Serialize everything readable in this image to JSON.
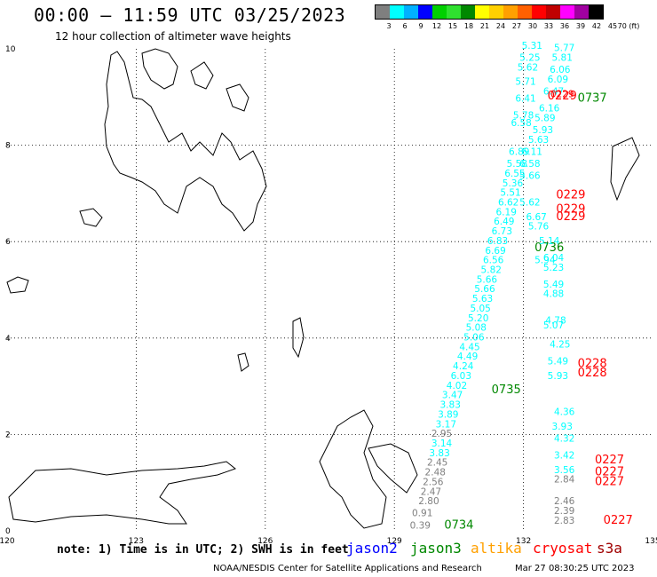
{
  "title": "00:00 – 11:59 UTC 03/25/2023",
  "subtitle": "12 hour collection of altimeter wave heights",
  "legend": {
    "colors": [
      "#7f7f7f",
      "#00ffff",
      "#00b0ff",
      "#0000ff",
      "#00d000",
      "#2fe02f",
      "#008800",
      "#ffff00",
      "#ffd000",
      "#ffa000",
      "#ff6000",
      "#ff0000",
      "#c00000",
      "#ff00ff",
      "#a000a0",
      "#000000"
    ],
    "labels": [
      "3",
      "6",
      "9",
      "12",
      "15",
      "18",
      "21",
      "24",
      "27",
      "30",
      "33",
      "36",
      "39",
      "42",
      "45",
      "70 (ft)"
    ]
  },
  "axes": {
    "lon_ticks": [
      "120",
      "123",
      "126",
      "129",
      "132",
      "135"
    ],
    "lat_ticks": [
      "0",
      "2",
      "4",
      "6",
      "8",
      "10"
    ],
    "lon_range": [
      120,
      135
    ],
    "lat_range": [
      0,
      10
    ],
    "grid": true
  },
  "footer": {
    "note": "note: 1) Time is in UTC; 2) SWH is in feet",
    "satellites": [
      {
        "name": "jason2",
        "color": "#0000ff"
      },
      {
        "name": "jason3",
        "color": "#008800"
      },
      {
        "name": "altika",
        "color": "#ffa000"
      },
      {
        "name": "cryosat",
        "color": "#ff0000"
      },
      {
        "name": "s3a",
        "color": "#a00000"
      }
    ],
    "credit": "NOAA/NESDIS Center for Satellite Applications and Research",
    "timestamp": "Mar 27 08:30:25 UTC 2023"
  },
  "chart_data": {
    "type": "scatter",
    "units": "ft",
    "tracks": [
      {
        "satellite": "jason3",
        "color": "#008800",
        "times": [
          {
            "label": "0734",
            "lon": 130.5,
            "lat": 0.05
          },
          {
            "label": "0735",
            "lon": 131.6,
            "lat": 2.85
          },
          {
            "label": "0736",
            "lon": 132.6,
            "lat": 5.8
          },
          {
            "label": "0737",
            "lon": 133.6,
            "lat": 8.9
          }
        ],
        "points": [
          {
            "v": "0.39",
            "lon": 129.6,
            "lat": 0.05,
            "c": "#7f7f7f"
          },
          {
            "v": "0.91",
            "lon": 129.65,
            "lat": 0.3,
            "c": "#7f7f7f"
          },
          {
            "v": "2.80",
            "lon": 129.8,
            "lat": 0.55,
            "c": "#7f7f7f"
          },
          {
            "v": "2.47",
            "lon": 129.85,
            "lat": 0.75,
            "c": "#7f7f7f"
          },
          {
            "v": "2.56",
            "lon": 129.9,
            "lat": 0.95,
            "c": "#7f7f7f"
          },
          {
            "v": "2.48",
            "lon": 129.95,
            "lat": 1.15,
            "c": "#7f7f7f"
          },
          {
            "v": "2.45",
            "lon": 130.0,
            "lat": 1.35,
            "c": "#7f7f7f"
          },
          {
            "v": "3.83",
            "lon": 130.05,
            "lat": 1.55,
            "c": "#00ffff"
          },
          {
            "v": "3.14",
            "lon": 130.1,
            "lat": 1.75,
            "c": "#00ffff"
          },
          {
            "v": "2.95",
            "lon": 130.1,
            "lat": 1.95,
            "c": "#7f7f7f"
          },
          {
            "v": "3.17",
            "lon": 130.2,
            "lat": 2.15,
            "c": "#00ffff"
          },
          {
            "v": "3.89",
            "lon": 130.25,
            "lat": 2.35,
            "c": "#00ffff"
          },
          {
            "v": "3.83",
            "lon": 130.3,
            "lat": 2.55,
            "c": "#00ffff"
          },
          {
            "v": "3.47",
            "lon": 130.35,
            "lat": 2.75,
            "c": "#00ffff"
          },
          {
            "v": "4.02",
            "lon": 130.45,
            "lat": 2.95,
            "c": "#00ffff"
          },
          {
            "v": "6.03",
            "lon": 130.55,
            "lat": 3.15,
            "c": "#00ffff"
          },
          {
            "v": "4.24",
            "lon": 130.6,
            "lat": 3.35,
            "c": "#00ffff"
          },
          {
            "v": "4.49",
            "lon": 130.7,
            "lat": 3.55,
            "c": "#00ffff"
          },
          {
            "v": "4.45",
            "lon": 130.75,
            "lat": 3.75,
            "c": "#00ffff"
          },
          {
            "v": "5.06",
            "lon": 130.85,
            "lat": 3.95,
            "c": "#00ffff"
          },
          {
            "v": "5.08",
            "lon": 130.9,
            "lat": 4.15,
            "c": "#00ffff"
          },
          {
            "v": "5.20",
            "lon": 130.95,
            "lat": 4.35,
            "c": "#00ffff"
          },
          {
            "v": "5.05",
            "lon": 131.0,
            "lat": 4.55,
            "c": "#00ffff"
          },
          {
            "v": "5.63",
            "lon": 131.05,
            "lat": 4.75,
            "c": "#00ffff"
          },
          {
            "v": "5.66",
            "lon": 131.1,
            "lat": 4.95,
            "c": "#00ffff"
          },
          {
            "v": "5.66",
            "lon": 131.15,
            "lat": 5.15,
            "c": "#00ffff"
          },
          {
            "v": "5.82",
            "lon": 131.25,
            "lat": 5.35,
            "c": "#00ffff"
          },
          {
            "v": "6.56",
            "lon": 131.3,
            "lat": 5.55,
            "c": "#00ffff"
          },
          {
            "v": "6.69",
            "lon": 131.35,
            "lat": 5.75,
            "c": "#00ffff"
          },
          {
            "v": "6.83",
            "lon": 131.4,
            "lat": 5.95,
            "c": "#00ffff"
          },
          {
            "v": "6.73",
            "lon": 131.5,
            "lat": 6.15,
            "c": "#00ffff"
          },
          {
            "v": "6.49",
            "lon": 131.55,
            "lat": 6.35,
            "c": "#00ffff"
          },
          {
            "v": "6.19",
            "lon": 131.6,
            "lat": 6.55,
            "c": "#00ffff"
          },
          {
            "v": "6.62",
            "lon": 131.65,
            "lat": 6.75,
            "c": "#00ffff"
          },
          {
            "v": "5.51",
            "lon": 131.7,
            "lat": 6.95,
            "c": "#00ffff"
          },
          {
            "v": "5.36",
            "lon": 131.75,
            "lat": 7.15,
            "c": "#00ffff"
          },
          {
            "v": "6.55",
            "lon": 131.8,
            "lat": 7.35,
            "c": "#00ffff"
          },
          {
            "v": "5.58",
            "lon": 131.85,
            "lat": 7.55,
            "c": "#00ffff"
          },
          {
            "v": "6.89",
            "lon": 131.9,
            "lat": 7.8,
            "c": "#00ffff"
          },
          {
            "v": "6.58",
            "lon": 131.95,
            "lat": 8.4,
            "c": "#00ffff"
          },
          {
            "v": "5.78",
            "lon": 132.0,
            "lat": 8.55,
            "c": "#00ffff"
          },
          {
            "v": "6.41",
            "lon": 132.05,
            "lat": 8.9,
            "c": "#00ffff"
          },
          {
            "v": "5.71",
            "lon": 132.05,
            "lat": 9.25,
            "c": "#00ffff"
          },
          {
            "v": "5.62",
            "lon": 132.1,
            "lat": 9.55,
            "c": "#00ffff"
          },
          {
            "v": "5.25",
            "lon": 132.15,
            "lat": 9.75,
            "c": "#00ffff"
          },
          {
            "v": "5.31",
            "lon": 132.2,
            "lat": 10.0,
            "c": "#00ffff"
          }
        ]
      },
      {
        "satellite": "cryosat",
        "color": "#ff0000",
        "times": [
          {
            "label": "0227",
            "lon": 134.0,
            "lat": 1.4
          },
          {
            "label": "0227",
            "lon": 134.0,
            "lat": 1.15
          },
          {
            "label": "0227",
            "lon": 134.0,
            "lat": 0.95
          },
          {
            "label": "0227",
            "lon": 134.2,
            "lat": 0.15
          },
          {
            "label": "0228",
            "lon": 133.6,
            "lat": 3.4
          },
          {
            "label": "0228",
            "lon": 133.6,
            "lat": 3.2
          },
          {
            "label": "0229",
            "lon": 133.1,
            "lat": 6.9
          },
          {
            "label": "0229",
            "lon": 133.1,
            "lat": 6.6
          },
          {
            "label": "0229",
            "lon": 133.1,
            "lat": 6.45
          },
          {
            "label": "0229",
            "lon": 132.9,
            "lat": 8.95
          }
        ],
        "points": [
          {
            "v": "2.83",
            "lon": 132.95,
            "lat": 0.15,
            "c": "#7f7f7f"
          },
          {
            "v": "2.39",
            "lon": 132.95,
            "lat": 0.35,
            "c": "#7f7f7f"
          },
          {
            "v": "2.46",
            "lon": 132.95,
            "lat": 0.55,
            "c": "#7f7f7f"
          },
          {
            "v": "2.84",
            "lon": 132.95,
            "lat": 1.0,
            "c": "#7f7f7f"
          },
          {
            "v": "3.56",
            "lon": 132.95,
            "lat": 1.2,
            "c": "#00ffff"
          },
          {
            "v": "3.42",
            "lon": 132.95,
            "lat": 1.5,
            "c": "#00ffff"
          },
          {
            "v": "4.32",
            "lon": 132.95,
            "lat": 1.85,
            "c": "#00ffff"
          },
          {
            "v": "3.93",
            "lon": 132.9,
            "lat": 2.1,
            "c": "#00ffff"
          },
          {
            "v": "4.36",
            "lon": 132.95,
            "lat": 2.4,
            "c": "#00ffff"
          },
          {
            "v": "5.93",
            "lon": 132.8,
            "lat": 3.15,
            "c": "#00ffff"
          },
          {
            "v": "5.49",
            "lon": 132.8,
            "lat": 3.45,
            "c": "#00ffff"
          },
          {
            "v": "4.25",
            "lon": 132.85,
            "lat": 3.8,
            "c": "#00ffff"
          },
          {
            "v": "5.07",
            "lon": 132.7,
            "lat": 4.2,
            "c": "#00ffff"
          },
          {
            "v": "4.78",
            "lon": 132.75,
            "lat": 4.3,
            "c": "#00ffff"
          },
          {
            "v": "4.88",
            "lon": 132.7,
            "lat": 4.85,
            "c": "#00ffff"
          },
          {
            "v": "5.49",
            "lon": 132.7,
            "lat": 5.05,
            "c": "#00ffff"
          },
          {
            "v": "5.23",
            "lon": 132.7,
            "lat": 5.4,
            "c": "#00ffff"
          },
          {
            "v": "6.04",
            "lon": 132.7,
            "lat": 5.6,
            "c": "#00ffff"
          },
          {
            "v": "5.14",
            "lon": 132.6,
            "lat": 5.95,
            "c": "#00ffff"
          },
          {
            "v": "5.94",
            "lon": 132.5,
            "lat": 5.55,
            "c": "#00ffff"
          },
          {
            "v": "5.76",
            "lon": 132.35,
            "lat": 6.25,
            "c": "#00ffff"
          },
          {
            "v": "6.67",
            "lon": 132.3,
            "lat": 6.45,
            "c": "#00ffff"
          },
          {
            "v": "5.62",
            "lon": 132.15,
            "lat": 6.75,
            "c": "#00ffff"
          },
          {
            "v": "5.66",
            "lon": 132.15,
            "lat": 7.3,
            "c": "#00ffff"
          },
          {
            "v": "6.58",
            "lon": 132.15,
            "lat": 7.55,
            "c": "#00ffff"
          },
          {
            "v": "6.11",
            "lon": 132.2,
            "lat": 7.8,
            "c": "#00ffff"
          },
          {
            "v": "5.63",
            "lon": 132.35,
            "lat": 8.05,
            "c": "#00ffff"
          },
          {
            "v": "5.93",
            "lon": 132.45,
            "lat": 8.25,
            "c": "#00ffff"
          },
          {
            "v": "5.89",
            "lon": 132.5,
            "lat": 8.5,
            "c": "#00ffff"
          },
          {
            "v": "6.16",
            "lon": 132.6,
            "lat": 8.7,
            "c": "#00ffff"
          },
          {
            "v": "6.47",
            "lon": 132.7,
            "lat": 9.05,
            "c": "#00ffff"
          },
          {
            "v": "6.09",
            "lon": 132.8,
            "lat": 9.3,
            "c": "#00ffff"
          },
          {
            "v": "6.06",
            "lon": 132.85,
            "lat": 9.5,
            "c": "#00ffff"
          },
          {
            "v": "5.81",
            "lon": 132.9,
            "lat": 9.75,
            "c": "#00ffff"
          },
          {
            "v": "5.77",
            "lon": 132.95,
            "lat": 9.95,
            "c": "#00ffff"
          },
          {
            "v": "0229",
            "lon": 132.9,
            "lat": 9.0,
            "c": "#ff0000"
          }
        ]
      }
    ]
  }
}
